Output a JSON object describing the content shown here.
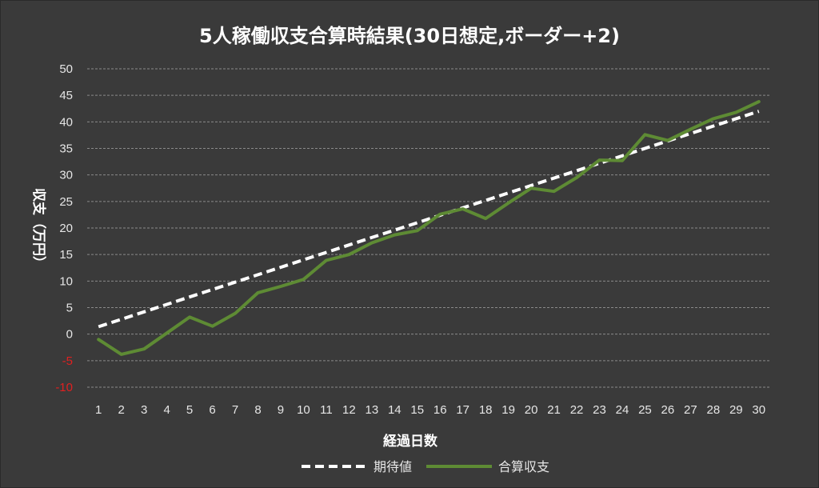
{
  "chart_data": {
    "type": "line",
    "title": "5人稼働収支合算時結果(30日想定,ボーダー+2)",
    "xlabel": "経過日数",
    "ylabel": "収支（万円）",
    "ylim": [
      -10,
      50
    ],
    "yticks": [
      "50",
      "45",
      "40",
      "35",
      "30",
      "25",
      "20",
      "15",
      "10",
      "5",
      "0",
      "-5",
      "-10"
    ],
    "negative_tick_color": "#e02020",
    "categories": [
      "1",
      "2",
      "3",
      "4",
      "5",
      "6",
      "7",
      "8",
      "9",
      "10",
      "11",
      "12",
      "13",
      "14",
      "15",
      "16",
      "17",
      "18",
      "19",
      "20",
      "21",
      "22",
      "23",
      "24",
      "25",
      "26",
      "27",
      "28",
      "29",
      "30"
    ],
    "grid": true,
    "legend_position": "bottom",
    "series": [
      {
        "name": "期待値",
        "color": "#ffffff",
        "style": "dashed",
        "values": [
          1.4,
          2.8,
          4.2,
          5.6,
          7.0,
          8.4,
          9.8,
          11.2,
          12.6,
          14.0,
          15.4,
          16.8,
          18.2,
          19.6,
          21.0,
          22.4,
          23.8,
          25.2,
          26.6,
          28.0,
          29.4,
          30.8,
          32.2,
          33.6,
          35.0,
          36.4,
          37.8,
          39.2,
          40.6,
          42.0
        ]
      },
      {
        "name": "合算収支",
        "color": "#5e8b34",
        "style": "solid",
        "values": [
          -1.0,
          -3.8,
          -2.8,
          0.2,
          3.2,
          1.5,
          3.9,
          7.8,
          9.0,
          10.3,
          13.9,
          15.0,
          17.2,
          18.7,
          19.5,
          22.6,
          23.6,
          21.8,
          24.7,
          27.5,
          26.9,
          29.5,
          32.8,
          32.7,
          37.6,
          36.5,
          38.6,
          40.6,
          41.8,
          43.8
        ]
      }
    ]
  }
}
